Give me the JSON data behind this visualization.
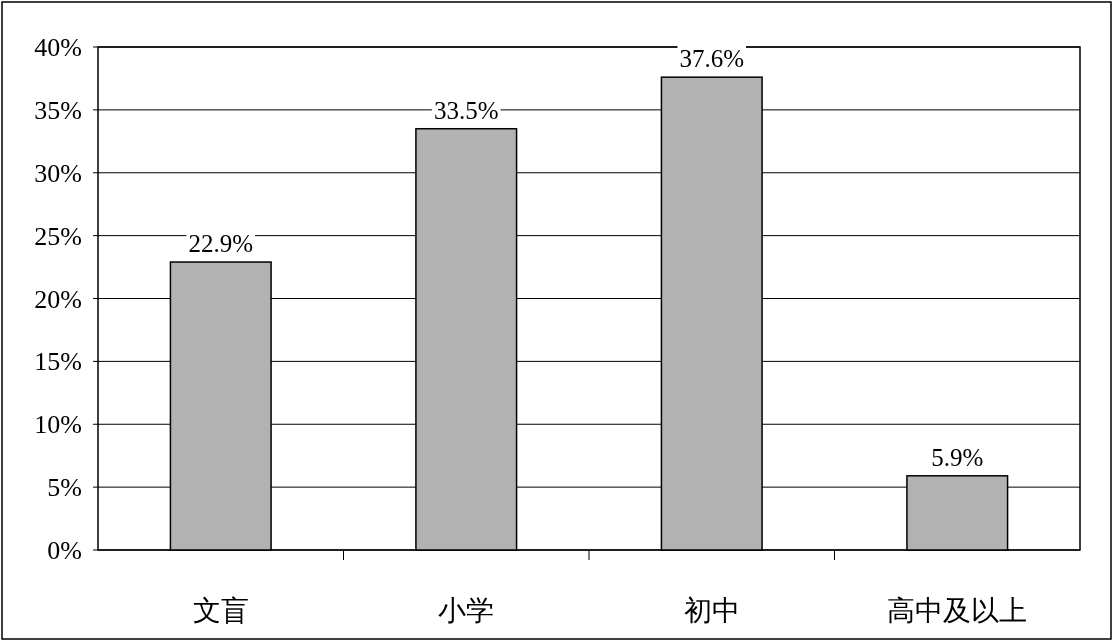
{
  "chart_data": {
    "type": "bar",
    "categories": [
      "文盲",
      "小学",
      "初中",
      "高中及以上"
    ],
    "values": [
      22.9,
      33.5,
      37.6,
      5.9
    ],
    "value_labels": [
      "22.9%",
      "33.5%",
      "37.6%",
      "5.9%"
    ],
    "color": "#b2b2b2",
    "ylim": [
      0,
      40
    ],
    "yticks": [
      {
        "value": 0,
        "label": "0%"
      },
      {
        "value": 5,
        "label": "5%"
      },
      {
        "value": 10,
        "label": "10%"
      },
      {
        "value": 15,
        "label": "15%"
      },
      {
        "value": 20,
        "label": "20%"
      },
      {
        "value": 25,
        "label": "25%"
      },
      {
        "value": 30,
        "label": "30%"
      },
      {
        "value": 35,
        "label": "35%"
      },
      {
        "value": 40,
        "label": "40%"
      }
    ],
    "grid": "y"
  }
}
